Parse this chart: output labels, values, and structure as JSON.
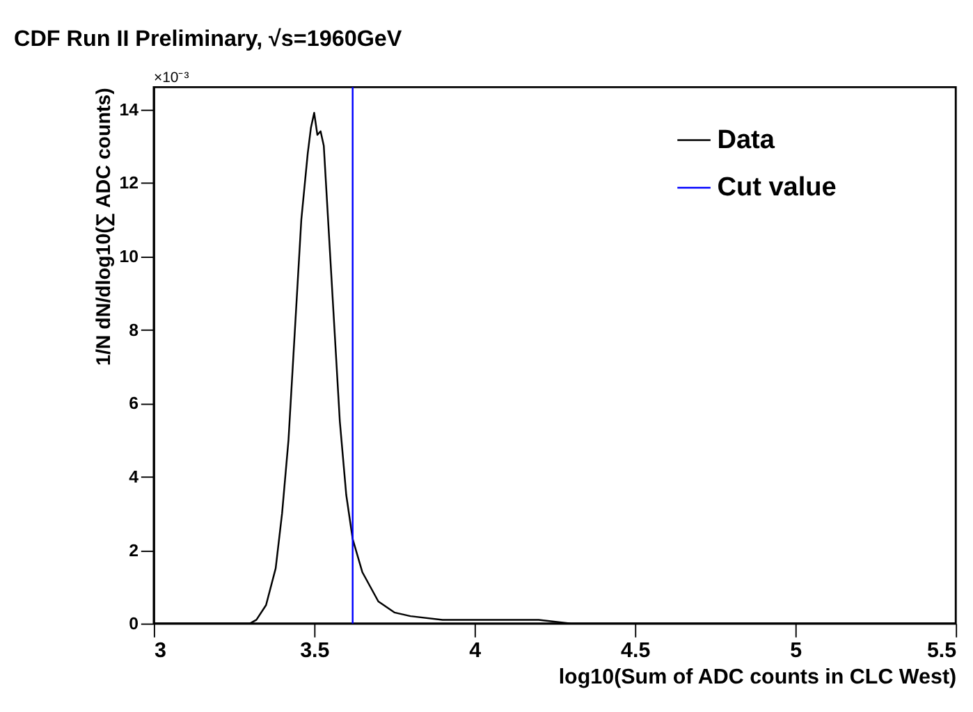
{
  "chart_data": {
    "type": "line",
    "title": "CDF Run II Preliminary, √s=1960GeV",
    "xlabel": "log10(Sum of ADC counts in CLC West)",
    "ylabel": "1/N dN/dlog10(∑ ADC counts)",
    "x": [
      3.0,
      3.3,
      3.32,
      3.35,
      3.38,
      3.4,
      3.42,
      3.44,
      3.46,
      3.48,
      3.49,
      3.5,
      3.51,
      3.52,
      3.53,
      3.54,
      3.56,
      3.58,
      3.6,
      3.62,
      3.65,
      3.7,
      3.75,
      3.8,
      3.9,
      4.0,
      4.1,
      4.2,
      4.3,
      4.4,
      4.5,
      5.5
    ],
    "series": [
      {
        "name": "Data",
        "color": "#000000",
        "values": [
          0,
          0,
          0.1,
          0.5,
          1.5,
          3,
          5,
          8,
          11,
          12.8,
          13.5,
          13.9,
          13.3,
          13.4,
          13,
          11.5,
          8.5,
          5.5,
          3.5,
          2.3,
          1.4,
          0.6,
          0.3,
          0.2,
          0.1,
          0.1,
          0.1,
          0.1,
          0,
          0,
          0,
          0
        ]
      },
      {
        "name": "Cut value",
        "type": "line",
        "color": "#0000ff",
        "x": [
          3.62,
          3.62
        ],
        "values": [
          0,
          14.6
        ]
      }
    ],
    "xlim": [
      3,
      5.5
    ],
    "xticks": [
      3,
      3.5,
      4,
      4.5,
      5,
      5.5
    ],
    "ylim": [
      0,
      14.6
    ],
    "yticks": [
      0,
      2,
      4,
      6,
      8,
      10,
      12,
      14
    ],
    "annotations": [
      "×10⁻³"
    ],
    "grid": false,
    "legend": "top right",
    "marker": "none",
    "line_style": "solid"
  }
}
